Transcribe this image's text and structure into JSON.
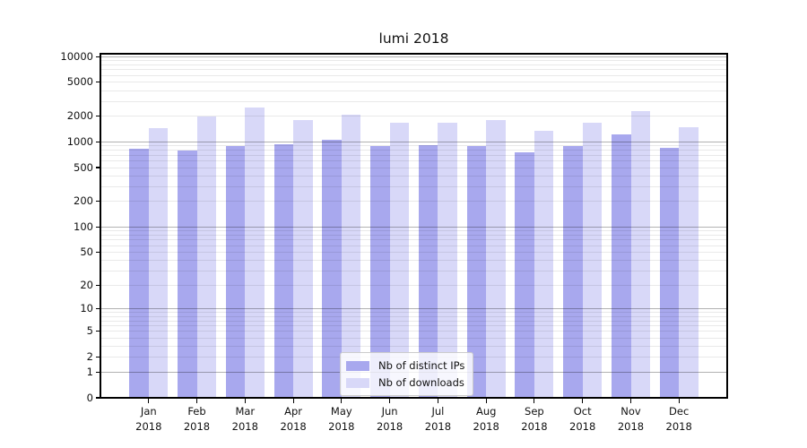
{
  "chart_data": {
    "type": "bar",
    "title": "lumi 2018",
    "categories": [
      "Jan",
      "Feb",
      "Mar",
      "Apr",
      "May",
      "Jun",
      "Jul",
      "Aug",
      "Sep",
      "Oct",
      "Nov",
      "Dec"
    ],
    "x_sublabel": "2018",
    "series": [
      {
        "name": "Nb of distinct IPs",
        "color": "#a8a8ee",
        "values": [
          830,
          795,
          905,
          945,
          1050,
          900,
          915,
          905,
          760,
          900,
          1240,
          850
        ]
      },
      {
        "name": "Nb of downloads",
        "color": "#d8d8f8",
        "values": [
          1435,
          1995,
          2540,
          1800,
          2090,
          1660,
          1685,
          1810,
          1360,
          1675,
          2325,
          1480
        ]
      }
    ],
    "y_axis": {
      "scale": "log10(value+1)",
      "ticks": [
        0,
        1,
        2,
        5,
        10,
        20,
        50,
        100,
        200,
        500,
        1000,
        2000,
        5000,
        10000
      ],
      "max": 10800,
      "major_gridlines_at": [
        1,
        10,
        100,
        1000,
        10000
      ],
      "minor_gridlines": "2-9 per decade"
    },
    "xlim": [
      -1,
      12
    ],
    "bar_width_units": 0.4,
    "grid": true,
    "legend": {
      "position": "lower center"
    }
  }
}
